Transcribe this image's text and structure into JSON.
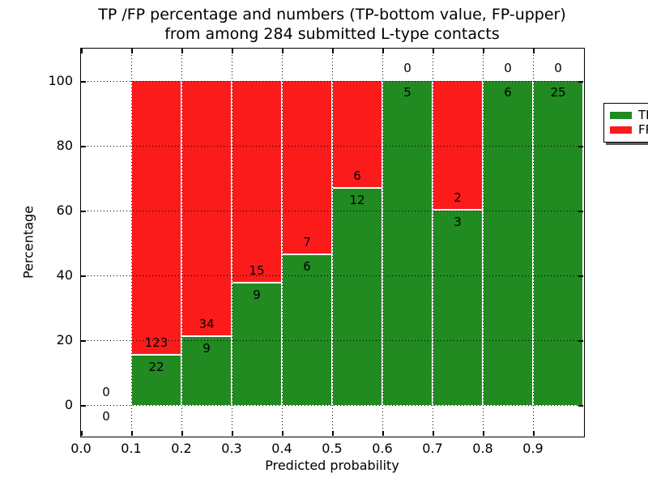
{
  "chart_data": {
    "type": "bar",
    "stacked": true,
    "title_lines": [
      "TP /FP percentage and numbers (TP-bottom value, FP-upper)",
      "from among 284 submitted L-type contacts"
    ],
    "xlabel": "Predicted probability",
    "ylabel": "Percentage",
    "total_contacts": 284,
    "xlim": [
      0.0,
      1.0
    ],
    "ylim": [
      -9.5,
      110
    ],
    "xtick_labels": [
      "0.0",
      "0.1",
      "0.2",
      "0.3",
      "0.4",
      "0.5",
      "0.6",
      "0.7",
      "0.8",
      "0.9"
    ],
    "ytick_values": [
      0,
      20,
      40,
      60,
      80,
      100
    ],
    "grid_style": "dotted",
    "legend": {
      "position": "upper right",
      "entries": [
        {
          "label": "TP",
          "color": "#218a21"
        },
        {
          "label": "FP",
          "color": "#fc1b1b"
        }
      ]
    },
    "bins": [
      {
        "range": [
          0.0,
          0.1
        ],
        "tp": 0,
        "fp": 0,
        "tp_percent": 0
      },
      {
        "range": [
          0.1,
          0.2
        ],
        "tp": 22,
        "fp": 123,
        "tp_percent": 15.2
      },
      {
        "range": [
          0.2,
          0.3
        ],
        "tp": 9,
        "fp": 34,
        "tp_percent": 20.9
      },
      {
        "range": [
          0.3,
          0.4
        ],
        "tp": 9,
        "fp": 15,
        "tp_percent": 37.5
      },
      {
        "range": [
          0.4,
          0.5
        ],
        "tp": 6,
        "fp": 7,
        "tp_percent": 46.2
      },
      {
        "range": [
          0.5,
          0.6
        ],
        "tp": 12,
        "fp": 6,
        "tp_percent": 66.7
      },
      {
        "range": [
          0.6,
          0.7
        ],
        "tp": 5,
        "fp": 0,
        "tp_percent": 100
      },
      {
        "range": [
          0.7,
          0.8
        ],
        "tp": 3,
        "fp": 2,
        "tp_percent": 60
      },
      {
        "range": [
          0.8,
          0.9
        ],
        "tp": 6,
        "fp": 0,
        "tp_percent": 100
      },
      {
        "range": [
          0.9,
          1.0
        ],
        "tp": 25,
        "fp": 0,
        "tp_percent": 100
      }
    ]
  }
}
